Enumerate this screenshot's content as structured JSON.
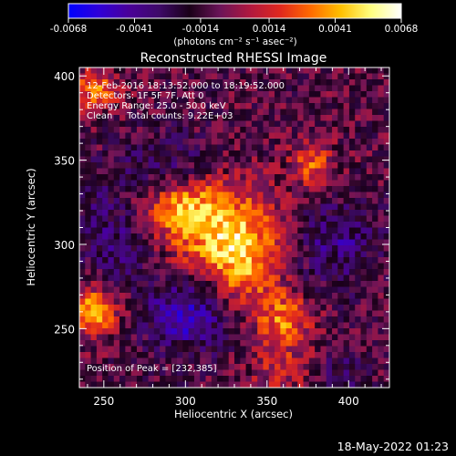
{
  "chart_data": {
    "type": "heatmap",
    "title": "Reconstructed RHESSI Image",
    "xlabel": "Heliocentric X (arcsec)",
    "ylabel": "Heliocentric Y (arcsec)",
    "xlim": [
      235,
      425
    ],
    "ylim": [
      215,
      405
    ],
    "xticks": [
      250,
      300,
      350,
      400
    ],
    "yticks": [
      250,
      300,
      350,
      400
    ],
    "colorbar": {
      "range": [
        -0.0068,
        0.0068
      ],
      "tick_values": [
        -0.0068,
        -0.0041,
        -0.0014,
        0.0014,
        0.0041,
        0.0068
      ],
      "tick_labels": [
        "-0.0068",
        "-0.0041",
        "-0.0014",
        "0.0014",
        "0.0041",
        "0.0068"
      ],
      "unit_label": "(photons cm⁻² s⁻¹ asec⁻²)",
      "colors": [
        "#0000ff",
        "#2f00d8",
        "#4a0099",
        "#3e0a68",
        "#1a0018",
        "#6a1458",
        "#b0183f",
        "#e0281e",
        "#ff6a00",
        "#ffc000",
        "#ffff80",
        "#ffffff"
      ]
    },
    "annotations": [
      "12-Feb-2016 18:13:52.000 to 18:19:52.000",
      "Detectors: 1F 5F 7F, Att 0",
      "Energy Range: 25.0 - 50.0 keV",
      "Clean     Total counts: 9.22E+03"
    ],
    "peak_label": "Position of Peak = [232,385]",
    "sources": [
      {
        "x": 318,
        "y": 310,
        "amplitude": 0.0038,
        "sigma_x": 28,
        "sigma_y": 22
      },
      {
        "x": 333,
        "y": 290,
        "amplitude": 0.004,
        "sigma_x": 16,
        "sigma_y": 20
      },
      {
        "x": 298,
        "y": 323,
        "amplitude": 0.0034,
        "sigma_x": 15,
        "sigma_y": 12
      },
      {
        "x": 243,
        "y": 260,
        "amplitude": 0.0058,
        "sigma_x": 10,
        "sigma_y": 10
      },
      {
        "x": 360,
        "y": 255,
        "amplitude": 0.004,
        "sigma_x": 12,
        "sigma_y": 12
      },
      {
        "x": 378,
        "y": 348,
        "amplitude": 0.0037,
        "sigma_x": 9,
        "sigma_y": 9
      },
      {
        "x": 245,
        "y": 392,
        "amplitude": 0.0038,
        "sigma_x": 10,
        "sigma_y": 9
      },
      {
        "x": 360,
        "y": 225,
        "amplitude": 0.002,
        "sigma_x": 16,
        "sigma_y": 10
      }
    ],
    "negative_regions": [
      {
        "x": 302,
        "y": 260,
        "amplitude": -0.0042,
        "sigma_x": 18,
        "sigma_y": 16
      },
      {
        "x": 260,
        "y": 300,
        "amplitude": -0.0026,
        "sigma_x": 16,
        "sigma_y": 14
      },
      {
        "x": 290,
        "y": 345,
        "amplitude": -0.0024,
        "sigma_x": 20,
        "sigma_y": 14
      },
      {
        "x": 392,
        "y": 300,
        "amplitude": -0.0026,
        "sigma_x": 18,
        "sigma_y": 18
      },
      {
        "x": 396,
        "y": 225,
        "amplitude": -0.0018,
        "sigma_x": 12,
        "sigma_y": 10
      },
      {
        "x": 245,
        "y": 330,
        "amplitude": -0.0014,
        "sigma_x": 12,
        "sigma_y": 12
      }
    ]
  },
  "timestamp": "18-May-2022 01:23"
}
